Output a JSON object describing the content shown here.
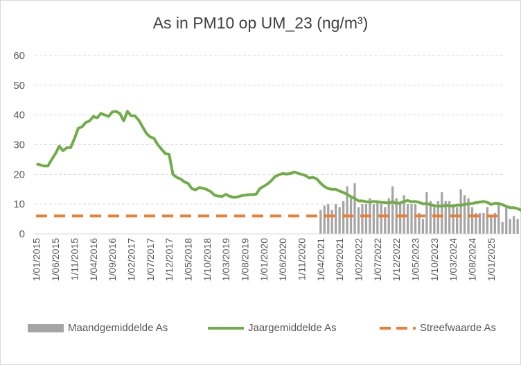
{
  "chart_data": {
    "type": "bar+line",
    "title": "As in PM10 op UM_23 (ng/m³)",
    "xlabel": "",
    "ylabel": "",
    "ylim": [
      0,
      60
    ],
    "yticks": [
      "0",
      "10",
      "20",
      "30",
      "40",
      "50",
      "60"
    ],
    "grid": true,
    "legend_position": "bottom",
    "x_start": "2015-01",
    "x_end": "2025-04",
    "xtick_labels": [
      "1/01/2015",
      "1/06/2015",
      "1/11/2015",
      "1/04/2016",
      "1/09/2016",
      "1/02/2017",
      "1/07/2017",
      "1/12/2017",
      "1/05/2018",
      "1/10/2018",
      "1/03/2019",
      "1/08/2019",
      "1/01/2020",
      "1/06/2020",
      "1/11/2020",
      "1/04/2021",
      "1/09/2021",
      "1/02/2022",
      "1/07/2022",
      "1/12/2022",
      "1/05/2023",
      "1/10/2023",
      "1/03/2024",
      "1/08/2024",
      "1/01/2025"
    ],
    "series": [
      {
        "name": "Maandgemiddelde As",
        "type": "bar",
        "color": "#a5a5a5",
        "start": "2021-04",
        "values": [
          8,
          9.5,
          10,
          8,
          10,
          9,
          11,
          16,
          12,
          17,
          9,
          10,
          10,
          12,
          10,
          11,
          10,
          9,
          12,
          16,
          12,
          10,
          13,
          10,
          10,
          10,
          7,
          5,
          14,
          11,
          9,
          11,
          14,
          11,
          11,
          10,
          9,
          15,
          13,
          12,
          9,
          7,
          7,
          7,
          9,
          6,
          7,
          10,
          4,
          9,
          5,
          6,
          5
        ]
      },
      {
        "name": "Jaargemiddelde As",
        "type": "line",
        "color": "#70ad47",
        "start": "2015-01",
        "values": [
          23.5,
          23.2,
          22.8,
          22.8,
          25,
          27,
          29.5,
          28,
          29,
          29,
          32,
          35.5,
          36,
          37.5,
          38,
          39.5,
          39,
          40.5,
          40,
          39.5,
          41,
          41.2,
          40.5,
          38,
          41.2,
          39.7,
          39.7,
          38.2,
          36,
          33.8,
          32.6,
          32.2,
          30,
          28.5,
          27,
          26.8,
          20,
          19,
          18.5,
          17.5,
          17,
          15.2,
          14.8,
          15.6,
          15.3,
          14.9,
          14.2,
          13,
          12.7,
          12.6,
          13.3,
          12.6,
          12.3,
          12.4,
          12.8,
          13,
          13.2,
          13.2,
          13.4,
          15.3,
          16,
          16.8,
          17.9,
          19.3,
          19.9,
          20.3,
          20.1,
          20.3,
          20.8,
          20.4,
          20,
          19.6,
          18.8,
          19,
          18.5,
          17,
          15.9,
          15.2,
          15,
          15,
          14.4,
          13.9,
          13.3,
          12.5,
          11.9,
          11.1,
          11.1,
          10.8,
          10.7,
          10.9,
          10.8,
          10.6,
          10.5,
          10.4,
          10.8,
          10.3,
          10.4,
          10.9,
          11.2,
          10.8,
          10.9,
          10.6,
          10.1,
          10.2,
          9.8,
          9.5,
          9.3,
          9.4,
          9.5,
          9.5,
          9.3,
          9.7,
          9.6,
          9.9,
          10.1,
          10.2,
          10.5,
          10.7,
          10.9,
          10.6,
          9.9,
          10.3,
          10.2,
          9.8,
          9.3,
          8.8,
          8.8,
          8.5,
          7.9,
          7.5,
          6.5
        ]
      },
      {
        "name": "Streefwaarde As",
        "type": "line-dashed",
        "color": "#ed7d31",
        "value": 6
      }
    ]
  }
}
